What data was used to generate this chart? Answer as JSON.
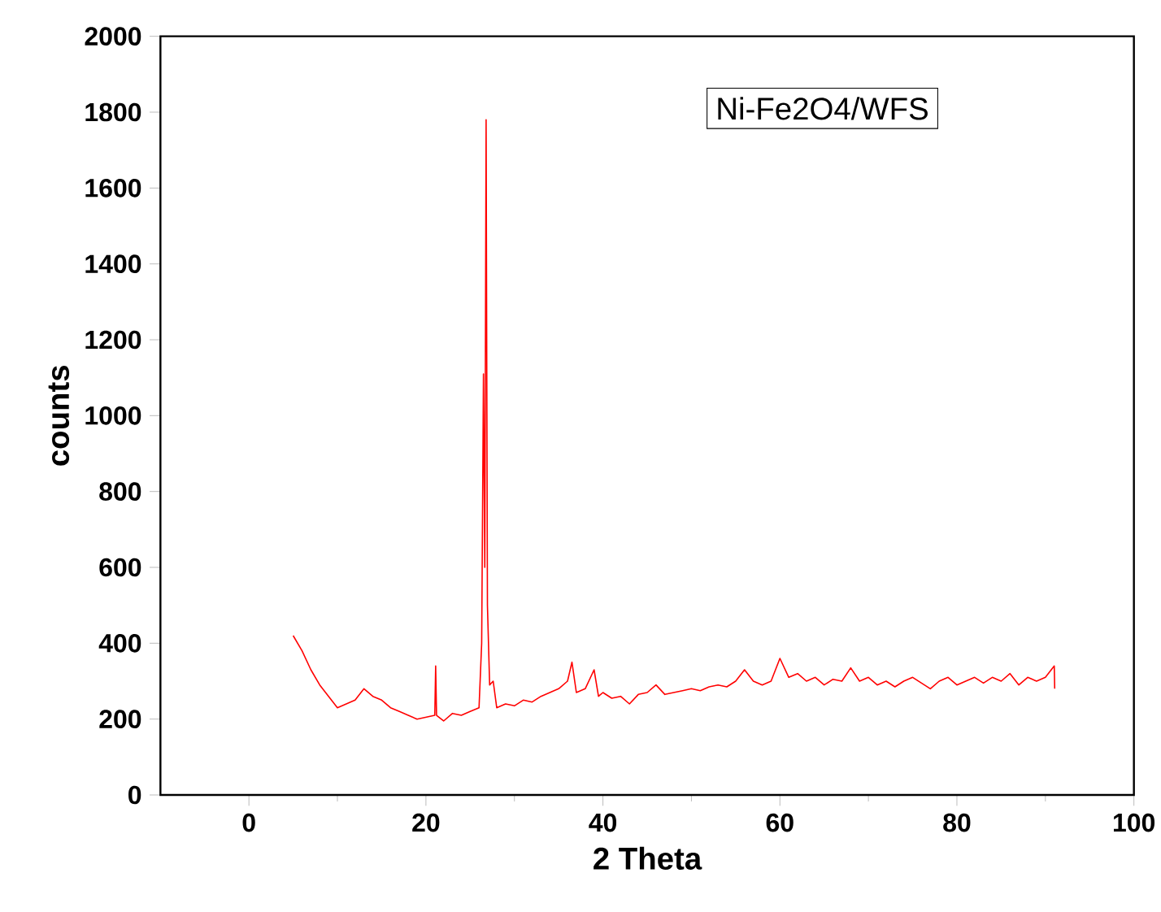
{
  "chart_data": {
    "type": "line",
    "xlabel": "2 Theta",
    "ylabel": "counts",
    "annotations": [
      "Ni-Fe2O4/WFS"
    ],
    "xlim": [
      -10,
      100
    ],
    "xticks": [
      0,
      20,
      40,
      60,
      80,
      100
    ],
    "ylim": [
      0,
      2000
    ],
    "yticks": [
      0,
      200,
      400,
      600,
      800,
      1000,
      1200,
      1400,
      1600,
      1800,
      2000
    ],
    "grid": false,
    "marker": "none",
    "line_style": "solid",
    "series": [
      {
        "color": "#ff0000",
        "x": [
          5,
          6,
          7,
          8,
          9,
          10,
          11,
          12,
          13,
          14,
          15,
          16,
          17,
          18,
          19,
          20,
          21,
          21.1,
          21.2,
          22,
          23,
          24,
          25,
          26,
          26.3,
          26.5,
          26.65,
          26.8,
          26.95,
          27.2,
          27.6,
          28,
          29,
          30,
          31,
          32,
          33,
          34,
          35,
          36,
          36.5,
          37,
          38,
          39,
          39.5,
          40,
          41,
          42,
          43,
          44,
          45,
          46,
          47,
          48,
          49,
          50,
          51,
          52,
          53,
          54,
          55,
          56,
          57,
          58,
          59,
          60,
          61,
          62,
          63,
          64,
          65,
          66,
          67,
          68,
          69,
          70,
          71,
          72,
          73,
          74,
          75,
          76,
          77,
          78,
          79,
          80,
          81,
          82,
          83,
          84,
          85,
          86,
          87,
          88,
          89,
          90,
          91,
          91.05
        ],
        "values": [
          420,
          380,
          330,
          290,
          260,
          230,
          240,
          250,
          280,
          260,
          250,
          230,
          220,
          210,
          200,
          205,
          210,
          340,
          210,
          195,
          215,
          210,
          220,
          230,
          400,
          1110,
          600,
          1780,
          500,
          290,
          300,
          230,
          240,
          235,
          250,
          245,
          260,
          270,
          280,
          300,
          350,
          270,
          280,
          330,
          260,
          270,
          255,
          260,
          240,
          265,
          270,
          290,
          265,
          270,
          275,
          280,
          275,
          285,
          290,
          285,
          300,
          330,
          300,
          290,
          300,
          360,
          310,
          320,
          300,
          310,
          290,
          305,
          300,
          335,
          300,
          310,
          290,
          300,
          285,
          300,
          310,
          295,
          280,
          300,
          310,
          290,
          300,
          310,
          295,
          310,
          300,
          320,
          290,
          310,
          300,
          310,
          340,
          280
        ]
      }
    ]
  }
}
